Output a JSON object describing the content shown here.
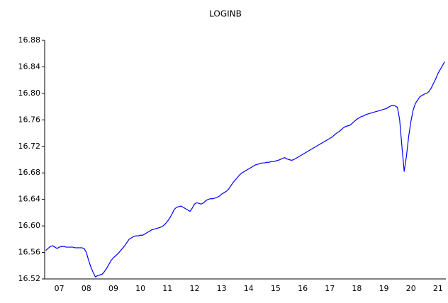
{
  "chart_data": {
    "type": "line",
    "title": "LOGINB",
    "categories": [
      null,
      null,
      null,
      null,
      null,
      null,
      "07",
      null,
      null,
      null,
      null,
      null,
      null,
      null,
      null,
      null,
      null,
      null,
      "08",
      null,
      null,
      null,
      null,
      null,
      null,
      null,
      null,
      null,
      null,
      null,
      "09",
      null,
      null,
      null,
      null,
      null,
      null,
      null,
      null,
      null,
      null,
      null,
      "10",
      null,
      null,
      null,
      null,
      null,
      null,
      null,
      null,
      null,
      null,
      null,
      "11",
      null,
      null,
      null,
      null,
      null,
      null,
      null,
      null,
      null,
      null,
      null,
      "12",
      null,
      null,
      null,
      null,
      null,
      null,
      null,
      null,
      null,
      null,
      null,
      "13",
      null,
      null,
      null,
      null,
      null,
      null,
      null,
      null,
      null,
      null,
      null,
      "14",
      null,
      null,
      null,
      null,
      null,
      null,
      null,
      null,
      null,
      null,
      null,
      "15",
      null,
      null,
      null,
      null,
      null,
      null,
      null,
      null,
      null,
      null,
      null,
      "16",
      null,
      null,
      null,
      null,
      null,
      null,
      null,
      null,
      null,
      null,
      null,
      "17",
      null,
      null,
      null,
      null,
      null,
      null,
      null,
      null,
      null,
      null,
      null,
      "18",
      null,
      null,
      null,
      null,
      null,
      null,
      null,
      null,
      null,
      null,
      null,
      "19",
      null,
      null,
      null,
      null,
      null,
      null,
      null,
      null,
      null,
      null,
      null,
      "20",
      null,
      null,
      null,
      null,
      null,
      null,
      null,
      null,
      null,
      null,
      null,
      "21",
      null,
      null,
      null
    ],
    "values": [
      16.563,
      16.566,
      16.569,
      16.57,
      16.568,
      16.566,
      16.568,
      16.569,
      16.569,
      16.568,
      16.568,
      16.568,
      16.568,
      16.567,
      16.567,
      16.567,
      16.567,
      16.566,
      16.56,
      16.548,
      16.538,
      16.53,
      16.523,
      16.525,
      16.526,
      16.527,
      16.531,
      16.536,
      16.542,
      16.548,
      16.552,
      16.555,
      16.558,
      16.562,
      16.566,
      16.57,
      16.575,
      16.58,
      16.582,
      16.584,
      16.585,
      16.585,
      16.586,
      16.586,
      16.588,
      16.59,
      16.592,
      16.594,
      16.595,
      16.596,
      16.597,
      16.598,
      16.6,
      16.603,
      16.607,
      16.612,
      16.618,
      16.625,
      16.628,
      16.629,
      16.63,
      16.628,
      16.626,
      16.624,
      16.622,
      16.627,
      16.633,
      16.635,
      16.634,
      16.633,
      16.635,
      16.638,
      16.64,
      16.641,
      16.641,
      16.642,
      16.643,
      16.645,
      16.648,
      16.65,
      16.652,
      16.655,
      16.66,
      16.665,
      16.669,
      16.673,
      16.677,
      16.68,
      16.682,
      16.684,
      16.686,
      16.688,
      16.69,
      16.692,
      16.693,
      16.694,
      16.695,
      16.695,
      16.696,
      16.696,
      16.697,
      16.697,
      16.698,
      16.699,
      16.7,
      16.702,
      16.703,
      16.701,
      16.7,
      16.699,
      16.7,
      16.702,
      16.704,
      16.706,
      16.708,
      16.71,
      16.712,
      16.714,
      16.716,
      16.718,
      16.72,
      16.722,
      16.724,
      16.726,
      16.728,
      16.73,
      16.732,
      16.734,
      16.737,
      16.74,
      16.742,
      16.745,
      16.748,
      16.75,
      16.751,
      16.752,
      16.755,
      16.758,
      16.761,
      16.763,
      16.765,
      16.766,
      16.768,
      16.769,
      16.77,
      16.771,
      16.772,
      16.773,
      16.774,
      16.775,
      16.776,
      16.777,
      16.779,
      16.781,
      16.782,
      16.781,
      16.779,
      16.76,
      16.72,
      16.682,
      16.705,
      16.735,
      16.758,
      16.775,
      16.785,
      16.79,
      16.795,
      16.797,
      16.799,
      16.8,
      16.803,
      16.808,
      16.815,
      16.822,
      16.83,
      16.836,
      16.842,
      16.848
    ],
    "color": "#0000ff",
    "ylim": [
      16.52,
      16.88
    ],
    "yticks": [
      16.52,
      16.56,
      {
        "value": 16.6,
        "label": "16.60"
      },
      16.64,
      16.68,
      16.72,
      16.76,
      {
        "value": 16.8,
        "label": "16.80"
      },
      16.84,
      16.88
    ],
    "grid": false
  }
}
